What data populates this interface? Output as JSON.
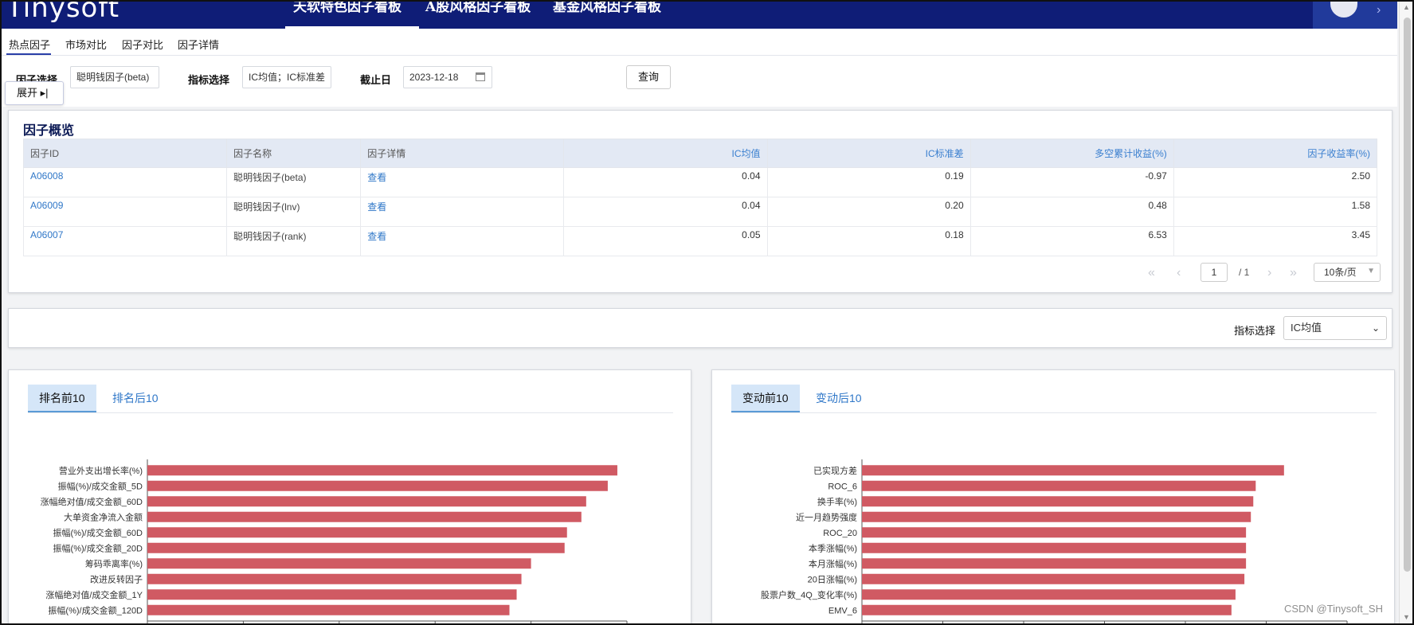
{
  "app": {
    "logo": "Tinysoft",
    "top_nav": [
      "天软特色因子看板",
      "A股风格因子看板",
      "基金风格因子看板"
    ]
  },
  "tabs": [
    "热点因子",
    "市场对比",
    "因子对比",
    "因子详情"
  ],
  "filter": {
    "factor_label": "因子选择",
    "factor_value": "聪明钱因子(beta)",
    "metric_label": "指标选择",
    "metric_value": "IC均值；IC标准差",
    "date_label": "截止日",
    "date_value": "2023-12-18",
    "query_button": "查询",
    "expand_button": "展开 ▸|"
  },
  "overview": {
    "title": "因子概览",
    "headers": [
      "因子ID",
      "因子名称",
      "因子详情",
      "IC均值",
      "IC标准差",
      "多空累计收益(%)",
      "因子收益率(%)"
    ],
    "rows": [
      [
        "A06008",
        "聪明钱因子(beta)",
        "查看",
        "0.04",
        "0.19",
        "-0.97",
        "2.50"
      ],
      [
        "A06009",
        "聪明钱因子(lnv)",
        "查看",
        "0.04",
        "0.20",
        "0.48",
        "1.58"
      ],
      [
        "A06007",
        "聪明钱因子(rank)",
        "查看",
        "0.05",
        "0.18",
        "6.53",
        "3.45"
      ]
    ],
    "pagination": {
      "page": "1",
      "total": "/ 1",
      "page_size": "10条/页"
    }
  },
  "indicator": {
    "label": "指标选择",
    "value": "IC均值"
  },
  "chart_data": [
    {
      "type": "bar",
      "orientation": "horizontal",
      "tabs": [
        "排名前10",
        "排名后10"
      ],
      "categories": [
        "营业外支出增长率(%)",
        "振幅(%)/成交金额_5D",
        "涨幅绝对值/成交金额_60D",
        "大单资金净流入金额",
        "振幅(%)/成交金额_60D",
        "振幅(%)/成交金额_20D",
        "筹码乖离率(%)",
        "改进反转因子",
        "涨幅绝对值/成交金额_1Y",
        "振幅(%)/成交金额_120D"
      ],
      "values": [
        0.098,
        0.096,
        0.0915,
        0.0905,
        0.0875,
        0.087,
        0.08,
        0.078,
        0.077,
        0.0755
      ],
      "xlim": [
        0,
        0.1
      ],
      "ticks": [
        "0",
        "0.02",
        "0.04",
        "0.06",
        "0.08",
        "0.1"
      ],
      "color": "#d05a63"
    },
    {
      "type": "bar",
      "orientation": "horizontal",
      "tabs": [
        "变动前10",
        "变动后10"
      ],
      "categories": [
        "已实现方差",
        "ROC_6",
        "换手率(%)",
        "近一月趋势强度",
        "ROC_20",
        "本季涨幅(%)",
        "本月涨幅(%)",
        "20日涨幅(%)",
        "股票户数_4Q_变化率(%)",
        "EMV_6"
      ],
      "values": [
        0.0522,
        0.0487,
        0.0484,
        0.0481,
        0.0475,
        0.0475,
        0.0475,
        0.0473,
        0.0462,
        0.0457
      ],
      "xlim": [
        0,
        0.06
      ],
      "ticks": [
        "0",
        "0.01",
        "0.02",
        "0.03",
        "0.04",
        "0.05",
        "0.06"
      ],
      "color": "#d05a63"
    }
  ],
  "watermark": "CSDN @Tinysoft_SH"
}
